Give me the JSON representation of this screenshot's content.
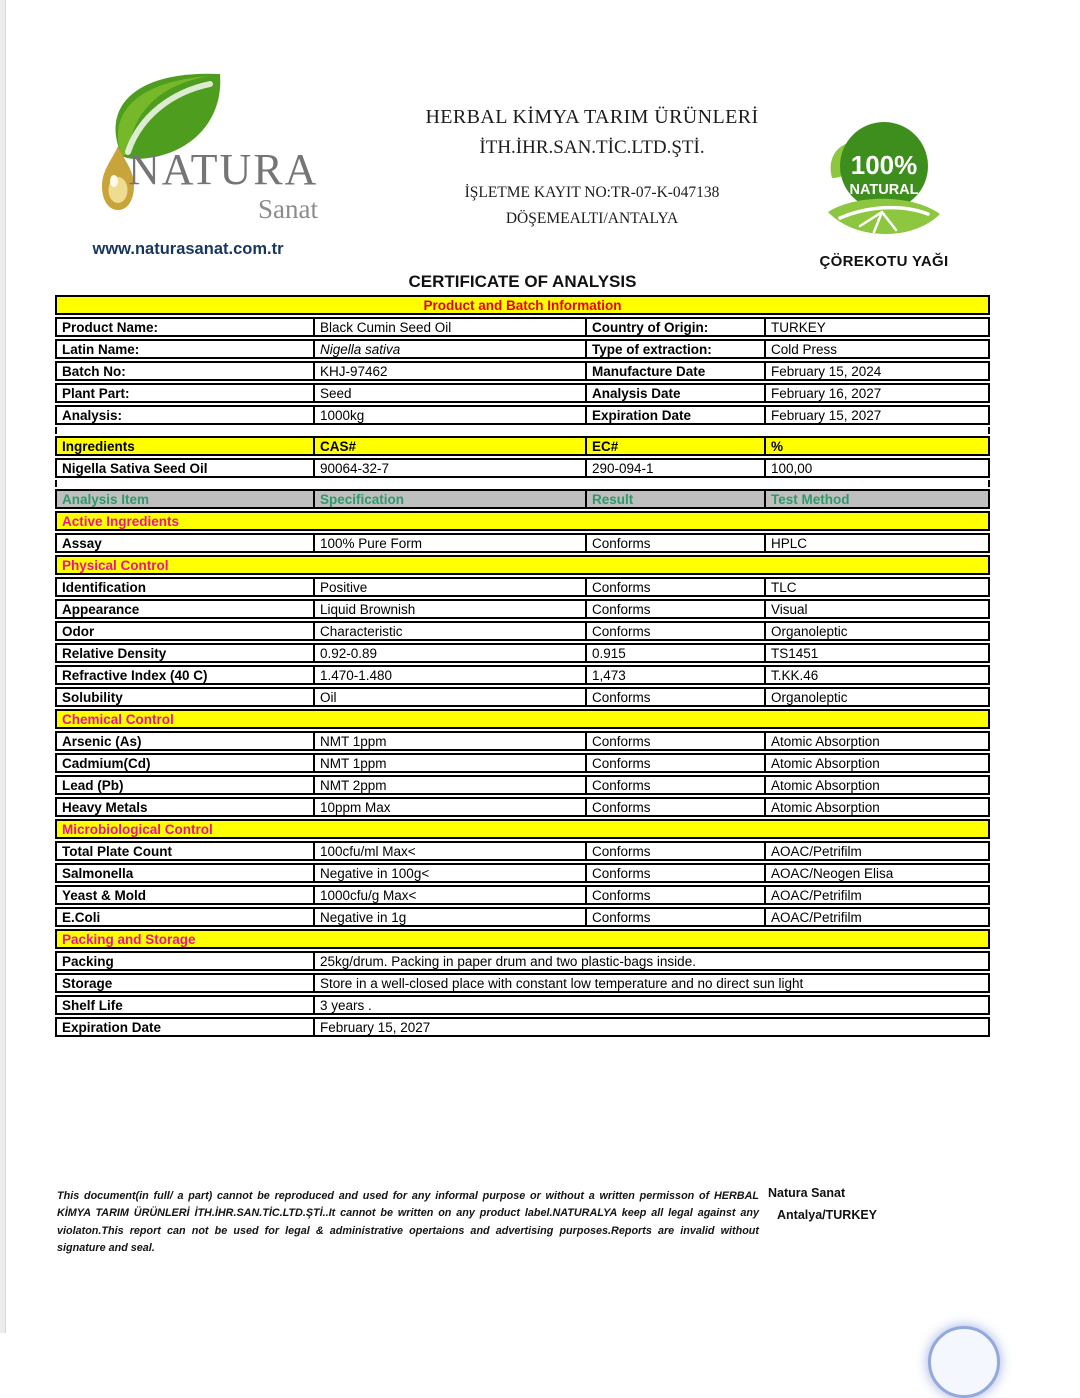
{
  "colors": {
    "highlight_yellow": "#ffff00",
    "banner_red": "#e80000",
    "section_pink": "#ed138e",
    "analysis_header_green": "#2e9a68",
    "analysis_header_gray": "#bfbfbf",
    "website_navy": "#17365d",
    "badge_green": "#3e8e1e",
    "leaf_light_green": "#8dc63f"
  },
  "logo": {
    "brand": "NATURA",
    "sub_brand": "Sanat",
    "website": "www.naturasanat.com.tr"
  },
  "company": {
    "name_line1": "HERBAL KİMYA TARIM ÜRÜNLERİ",
    "name_line2": "İTH.İHR.SAN.TİC.LTD.ŞTİ.",
    "registration": "İŞLETME KAYIT NO:TR-07-K-047138",
    "district": "DÖŞEMEALTI/ANTALYA"
  },
  "badge": {
    "percent": "100%",
    "natural": "NATURAL",
    "caption": "ÇÖREKOTU YAĞI"
  },
  "title": "CERTIFICATE OF ANALYSIS",
  "table": {
    "rows": [
      {
        "t": "banner",
        "label": "Product and Batch Information"
      },
      {
        "t": "pairs",
        "cells": [
          "Product Name:",
          "Black Cumin Seed Oil",
          "Country of Origin:",
          "TURKEY"
        ]
      },
      {
        "t": "pairs",
        "italic": 1,
        "cells": [
          "Latin Name:",
          "Nigella sativa",
          "Type of extraction:",
          "Cold Press"
        ]
      },
      {
        "t": "pairs",
        "cells": [
          "Batch No:",
          "KHJ-97462",
          "Manufacture Date",
          "February 15, 2024"
        ]
      },
      {
        "t": "pairs",
        "cells": [
          "Plant Part:",
          "Seed",
          "Analysis Date",
          "February 16, 2027"
        ]
      },
      {
        "t": "pairs",
        "cells": [
          "Analysis:",
          "1000kg",
          "Expiration Date",
          "February 15, 2027"
        ]
      },
      {
        "t": "spacer"
      },
      {
        "t": "cols",
        "cells": [
          "Ingredients",
          "CAS#",
          "EC#",
          "%"
        ]
      },
      {
        "t": "data",
        "cells": [
          "Nigella Sativa Seed Oil",
          "90064-32-7",
          "290-094-1",
          "100,00"
        ]
      },
      {
        "t": "spacer"
      },
      {
        "t": "head",
        "cells": [
          "Analysis Item",
          "Specification",
          "Result",
          "Test Method"
        ]
      },
      {
        "t": "section",
        "label": "Active Ingredients"
      },
      {
        "t": "data",
        "cells": [
          "Assay",
          "100% Pure Form",
          "Conforms",
          "HPLC"
        ]
      },
      {
        "t": "section",
        "label": "Physical Control"
      },
      {
        "t": "data",
        "cells": [
          "Identification",
          "Positive",
          "Conforms",
          "TLC"
        ]
      },
      {
        "t": "data",
        "cells": [
          "Appearance",
          "Liquid Brownish",
          "Conforms",
          "Visual"
        ]
      },
      {
        "t": "data",
        "cells": [
          "Odor",
          "Characteristic",
          "Conforms",
          "Organoleptic"
        ]
      },
      {
        "t": "data",
        "cells": [
          "Relative Density",
          "0.92-0.89",
          "0.915",
          "TS1451"
        ]
      },
      {
        "t": "data",
        "cells": [
          "Refractive Index (40 C)",
          "1.470-1.480",
          "1,473",
          "T.KK.46"
        ]
      },
      {
        "t": "data",
        "cells": [
          "Solubility",
          "Oil",
          "Conforms",
          "Organoleptic"
        ]
      },
      {
        "t": "section",
        "label": "Chemical Control"
      },
      {
        "t": "data",
        "cells": [
          "Arsenic (As)",
          "NMT 1ppm",
          "Conforms",
          "Atomic Absorption"
        ]
      },
      {
        "t": "data",
        "cells": [
          "Cadmium(Cd)",
          "NMT 1ppm",
          "Conforms",
          "Atomic Absorption"
        ]
      },
      {
        "t": "data",
        "cells": [
          "Lead (Pb)",
          "NMT 2ppm",
          "Conforms",
          "Atomic Absorption"
        ]
      },
      {
        "t": "data",
        "cells": [
          "Heavy Metals",
          "10ppm Max",
          "Conforms",
          "Atomic Absorption"
        ]
      },
      {
        "t": "section",
        "label": "Microbiological Control"
      },
      {
        "t": "data",
        "cells": [
          "Total Plate Count",
          "100cfu/ml Max<",
          "Conforms",
          "AOAC/Petrifilm"
        ]
      },
      {
        "t": "data",
        "cells": [
          "Salmonella",
          "Negative in 100g<",
          "Conforms",
          "AOAC/Neogen Elisa"
        ]
      },
      {
        "t": "data",
        "cells": [
          "Yeast & Mold",
          "1000cfu/g Max<",
          "Conforms",
          "AOAC/Petrifilm"
        ]
      },
      {
        "t": "data",
        "cells": [
          "E.Coli",
          "Negative in 1g",
          "Conforms",
          "AOAC/Petrifilm"
        ]
      },
      {
        "t": "section",
        "label": "Packing and Storage"
      },
      {
        "t": "wide",
        "cells": [
          "Packing",
          "25kg/drum. Packing in paper drum and two plastic-bags inside."
        ]
      },
      {
        "t": "wide",
        "cells": [
          "Storage",
          "Store in a well-closed place with constant low temperature  and no direct sun light"
        ]
      },
      {
        "t": "wide",
        "cells": [
          "Shelf Life",
          "3 years ."
        ]
      },
      {
        "t": "wide",
        "cells": [
          "Expiration Date",
          "February 15, 2027"
        ]
      }
    ]
  },
  "footer": {
    "disclaimer": "This document(in full/ a part) cannot be reproduced and used for any informal purpose or without a written permisson of HERBAL KİMYA TARIM ÜRÜNLERİ İTH.İHR.SAN.TİC.LTD.ŞTİ..It cannot be written on any product label.NATURALYA keep all legal against any violaton.This report can not be used for legal & administrative opertaions and advertising purposes.Reports are invalid without signature and seal.",
    "signature_name": "Natura Sanat",
    "signature_location": "Antalya/TURKEY"
  }
}
